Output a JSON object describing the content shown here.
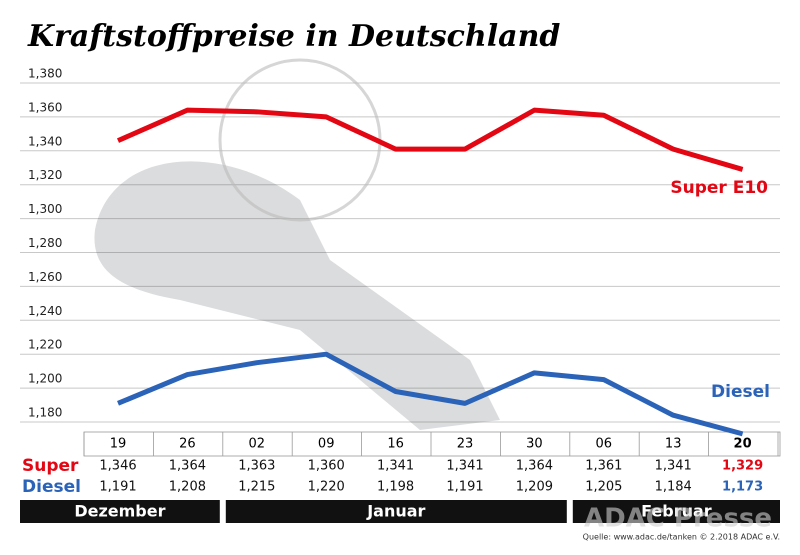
{
  "chart_data": {
    "type": "line",
    "title": "Kraftstoffpreise in Deutschland",
    "categories": [
      "19",
      "26",
      "02",
      "09",
      "16",
      "23",
      "30",
      "06",
      "13",
      "20"
    ],
    "month_groups": [
      {
        "label": "Dezember",
        "span": 2
      },
      {
        "label": "Januar",
        "span": 5
      },
      {
        "label": "Februar",
        "span": 3
      }
    ],
    "series": [
      {
        "name": "Super E10",
        "table_label": "Super",
        "color": "#e30613",
        "values": [
          1.346,
          1.364,
          1.363,
          1.36,
          1.341,
          1.341,
          1.364,
          1.361,
          1.341,
          1.329
        ],
        "value_labels": [
          "1,346",
          "1,364",
          "1,363",
          "1,360",
          "1,341",
          "1,341",
          "1,364",
          "1,361",
          "1,341",
          "1,329"
        ]
      },
      {
        "name": "Diesel",
        "table_label": "Diesel",
        "color": "#2b63b8",
        "values": [
          1.191,
          1.208,
          1.215,
          1.22,
          1.198,
          1.191,
          1.209,
          1.205,
          1.184,
          1.173
        ],
        "value_labels": [
          "1,191",
          "1,208",
          "1,215",
          "1,220",
          "1,198",
          "1,191",
          "1,209",
          "1,205",
          "1,184",
          "1,173"
        ]
      }
    ],
    "ylim": [
      1.18,
      1.38
    ],
    "yticks": [
      {
        "value": 1.18,
        "label": "1,180"
      },
      {
        "value": 1.2,
        "label": "1,200"
      },
      {
        "value": 1.22,
        "label": "1,220"
      },
      {
        "value": 1.24,
        "label": "1,240"
      },
      {
        "value": 1.26,
        "label": "1,260"
      },
      {
        "value": 1.28,
        "label": "1,280"
      },
      {
        "value": 1.3,
        "label": "1,300"
      },
      {
        "value": 1.32,
        "label": "1,320"
      },
      {
        "value": 1.34,
        "label": "1,340"
      },
      {
        "value": 1.36,
        "label": "1,360"
      },
      {
        "value": 1.38,
        "label": "1,380"
      }
    ],
    "grid": true,
    "source": "Quelle: www.adac.de/tanken   © 2.2018  ADAC e.V.",
    "watermark": "ADAC Presse"
  }
}
